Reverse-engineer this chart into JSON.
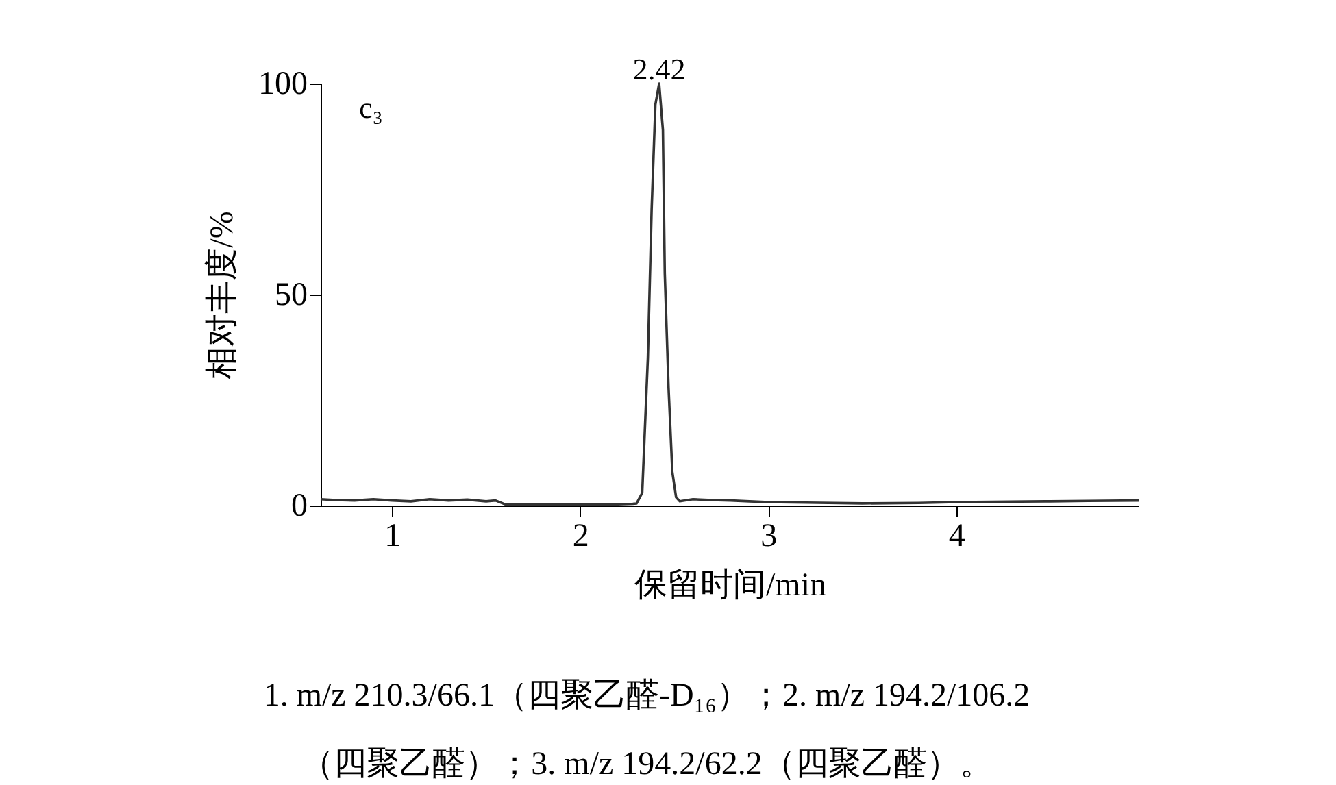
{
  "chart_data": {
    "type": "line",
    "xlabel": "保留时间/min",
    "ylabel": "相对丰度/%",
    "x": [
      0.62,
      0.7,
      0.8,
      0.9,
      1.0,
      1.1,
      1.2,
      1.3,
      1.4,
      1.5,
      1.55,
      1.6,
      1.8,
      2.0,
      2.2,
      2.28,
      2.3,
      2.33,
      2.36,
      2.38,
      2.4,
      2.42,
      2.44,
      2.45,
      2.47,
      2.49,
      2.51,
      2.53,
      2.6,
      2.7,
      2.8,
      2.9,
      3.0,
      3.2,
      3.5,
      3.8,
      4.0,
      4.2,
      4.5,
      4.7,
      4.97
    ],
    "series": [
      {
        "color": "#333333",
        "values": [
          1.5,
          1.3,
          1.2,
          1.5,
          1.2,
          1.0,
          1.5,
          1.2,
          1.4,
          1.0,
          1.2,
          0.3,
          0.3,
          0.3,
          0.3,
          0.4,
          0.5,
          3,
          35,
          70,
          95,
          100,
          89,
          55,
          28,
          8,
          2,
          1,
          1.5,
          1.3,
          1.2,
          1.0,
          0.8,
          0.7,
          0.5,
          0.6,
          0.8,
          0.9,
          1.0,
          1.1,
          1.2
        ]
      }
    ],
    "xlim": [
      0.62,
      4.97
    ],
    "xticks": [
      1,
      2,
      3,
      4
    ],
    "ylim": [
      0,
      100
    ],
    "yticks": [
      0,
      50,
      100
    ],
    "grid": false,
    "marker": "none",
    "line_style": "solid",
    "annotations": [
      "c₃",
      {
        "text": "2.42",
        "x": 2.42,
        "y": 100
      },
      "1. m/z 210.3/66.1（四聚乙醛-D₁₆）；2. m/z 194.2/106.2",
      "（四聚乙醛）；3. m/z 194.2/62.2（四聚乙醛）。"
    ]
  }
}
